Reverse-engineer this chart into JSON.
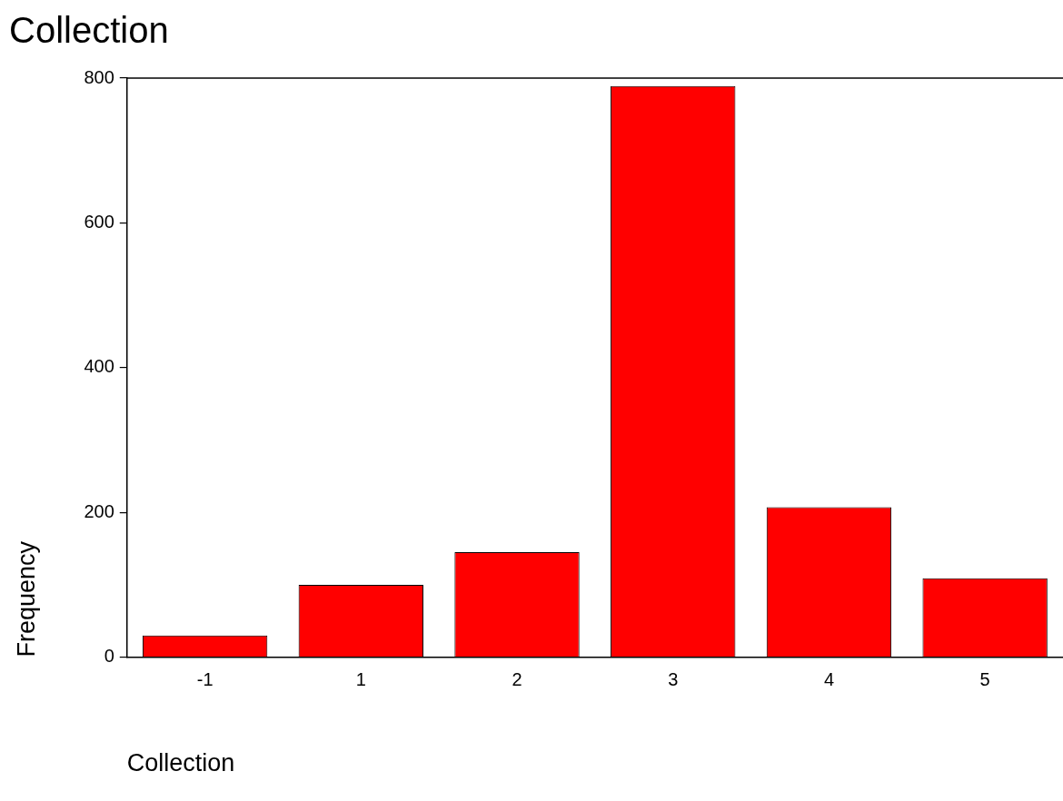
{
  "chart_data": {
    "type": "bar",
    "title": "Collection",
    "xlabel": "Collection",
    "ylabel": "Frequency",
    "categories": [
      "-1",
      "1",
      "2",
      "3",
      "4",
      "5"
    ],
    "values": [
      30,
      100,
      145,
      789,
      207,
      109
    ],
    "color": "#ff0000",
    "ylim": [
      0,
      800
    ],
    "yticks": [
      0,
      200,
      400,
      600,
      800
    ],
    "grid": false,
    "legend": false
  }
}
